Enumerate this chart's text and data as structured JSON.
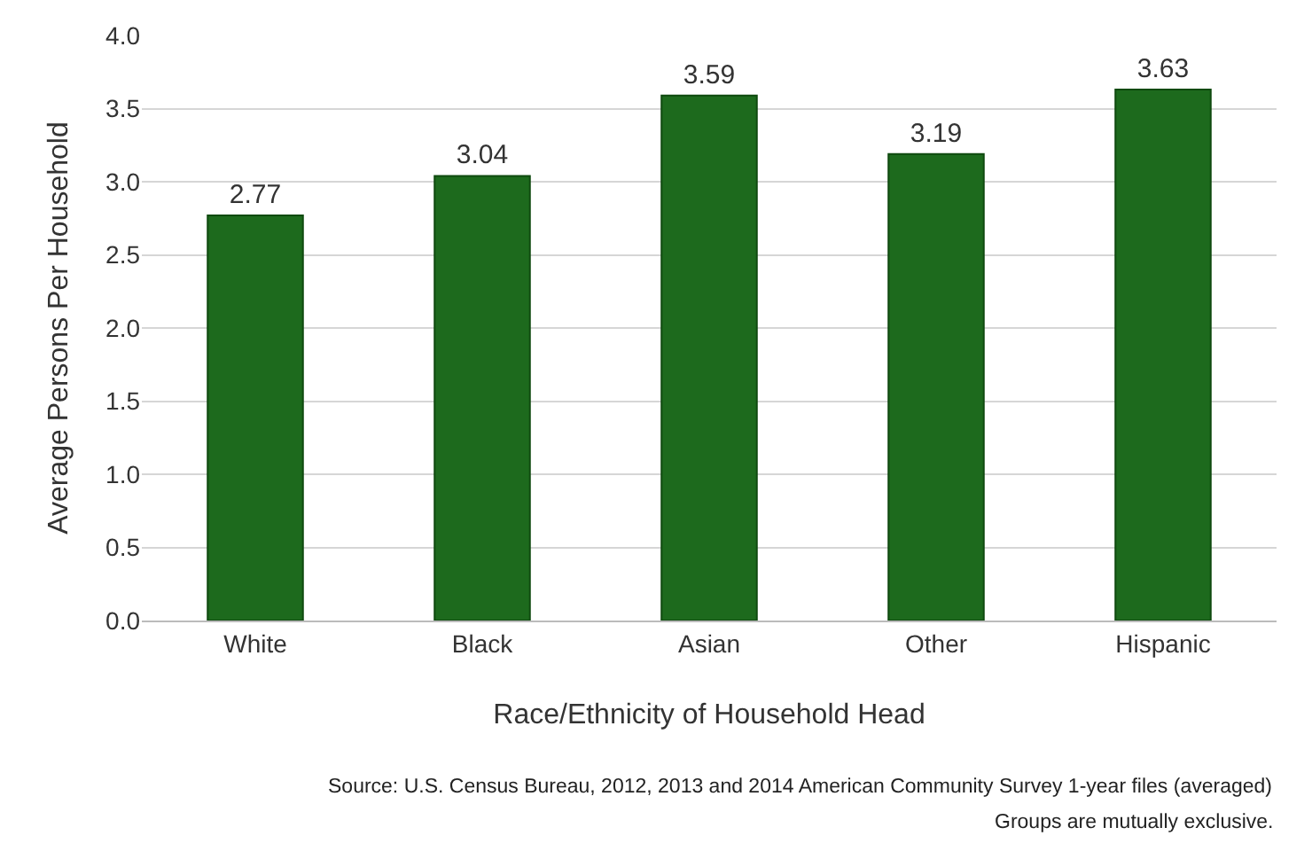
{
  "chart_data": {
    "type": "bar",
    "categories": [
      "White",
      "Black",
      "Asian",
      "Other",
      "Hispanic"
    ],
    "values": [
      2.77,
      3.04,
      3.59,
      3.19,
      3.63
    ],
    "color": "#1d6a1d",
    "xlabel": "Race/Ethnicity of Household Head",
    "ylabel": "Average Persons Per Household",
    "ylim": [
      0,
      4
    ],
    "yticks": [
      {
        "value": 0,
        "label": "0.0"
      },
      {
        "value": 0.5,
        "label": "0.5"
      },
      {
        "value": 1,
        "label": "1.0"
      },
      {
        "value": 1.5,
        "label": "1.5"
      },
      {
        "value": 2,
        "label": "2.0"
      },
      {
        "value": 2.5,
        "label": "2.5"
      },
      {
        "value": 3,
        "label": "3.0"
      },
      {
        "value": 3.5,
        "label": "3.5"
      },
      {
        "value": 4,
        "label": "4.0"
      }
    ],
    "grid": "y",
    "data_labels": true,
    "annotations": [
      "Source: U.S. Census Bureau, 2012, 2013 and 2014 American Community Survey 1-year files (averaged)",
      "Groups are mutually exclusive."
    ]
  }
}
